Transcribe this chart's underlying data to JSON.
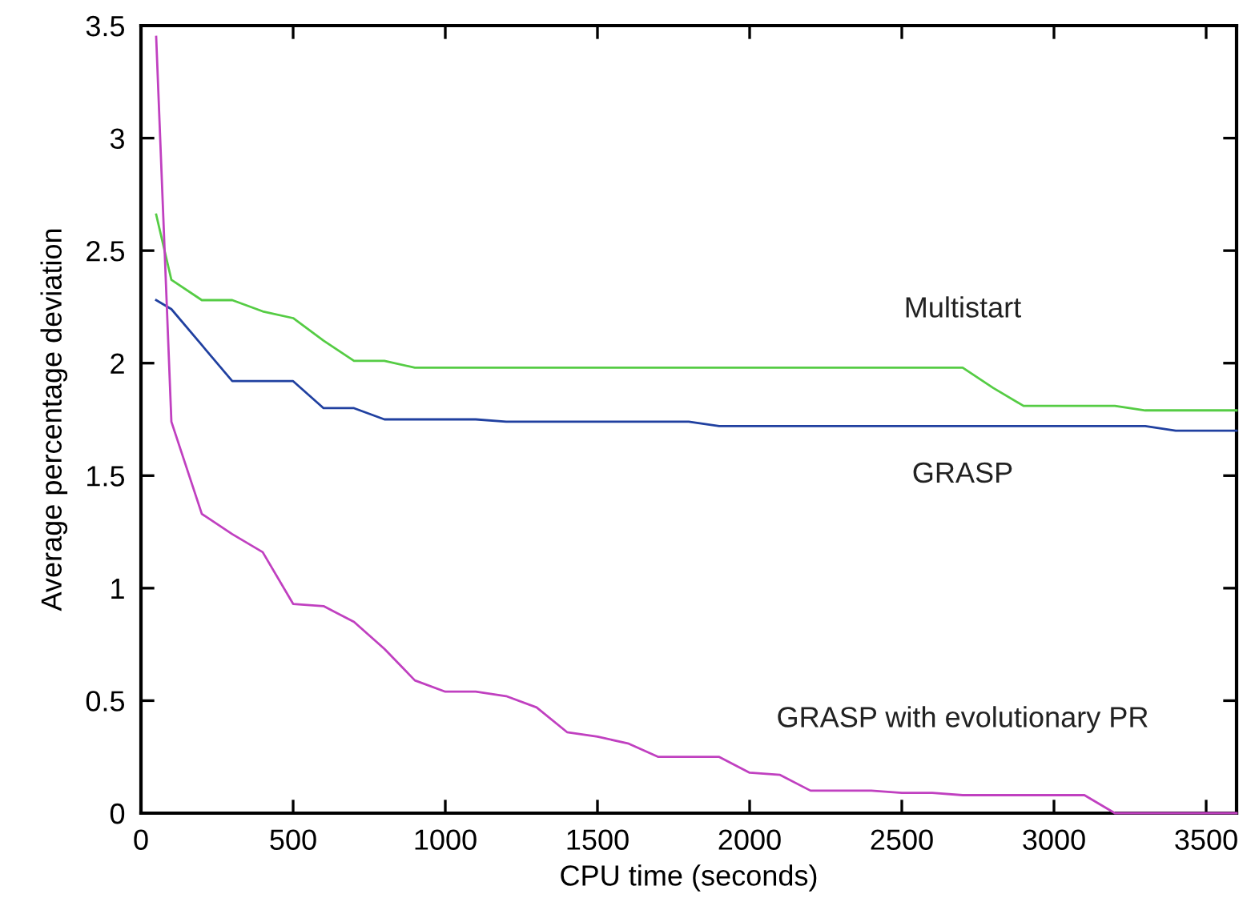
{
  "chart_data": {
    "type": "line",
    "xlabel": "CPU time (seconds)",
    "ylabel": "Average percentage deviation",
    "x": [
      50,
      100,
      200,
      300,
      400,
      500,
      600,
      700,
      800,
      900,
      1000,
      1100,
      1200,
      1300,
      1400,
      1500,
      1600,
      1700,
      1800,
      1900,
      2000,
      2100,
      2200,
      2300,
      2400,
      2500,
      2600,
      2700,
      2800,
      2900,
      3000,
      3100,
      3200,
      3300,
      3400,
      3500,
      3600
    ],
    "series": [
      {
        "name": "Multistart",
        "color": "#55cc44",
        "values": [
          2.66,
          2.37,
          2.28,
          2.28,
          2.23,
          2.2,
          2.1,
          2.01,
          2.01,
          1.98,
          1.98,
          1.98,
          1.98,
          1.98,
          1.98,
          1.98,
          1.98,
          1.98,
          1.98,
          1.98,
          1.98,
          1.98,
          1.98,
          1.98,
          1.98,
          1.98,
          1.98,
          1.98,
          1.89,
          1.81,
          1.81,
          1.81,
          1.81,
          1.79,
          1.79,
          1.79,
          1.79
        ]
      },
      {
        "name": "GRASP",
        "color": "#2040a0",
        "values": [
          2.28,
          2.24,
          2.08,
          1.92,
          1.92,
          1.92,
          1.8,
          1.8,
          1.75,
          1.75,
          1.75,
          1.75,
          1.74,
          1.74,
          1.74,
          1.74,
          1.74,
          1.74,
          1.74,
          1.72,
          1.72,
          1.72,
          1.72,
          1.72,
          1.72,
          1.72,
          1.72,
          1.72,
          1.72,
          1.72,
          1.72,
          1.72,
          1.72,
          1.72,
          1.7,
          1.7,
          1.7
        ]
      },
      {
        "name": "GRASP with evolutionary PR",
        "color": "#c040c0",
        "values": [
          3.45,
          1.74,
          1.33,
          1.24,
          1.16,
          0.93,
          0.92,
          0.85,
          0.73,
          0.59,
          0.54,
          0.54,
          0.52,
          0.47,
          0.36,
          0.34,
          0.31,
          0.25,
          0.25,
          0.25,
          0.18,
          0.17,
          0.1,
          0.1,
          0.1,
          0.09,
          0.09,
          0.08,
          0.08,
          0.08,
          0.08,
          0.08,
          0,
          0,
          0,
          0,
          0
        ]
      }
    ],
    "xlim": [
      0,
      3600
    ],
    "xticks": [
      0,
      500,
      1000,
      1500,
      2000,
      2500,
      3000,
      3500
    ],
    "ylim": [
      0,
      3.5
    ],
    "yticks": [
      0,
      0.5,
      1,
      1.5,
      2,
      2.5,
      3,
      3.5
    ],
    "grid": false,
    "legend": false,
    "marker": "none",
    "line_style": "solid"
  }
}
